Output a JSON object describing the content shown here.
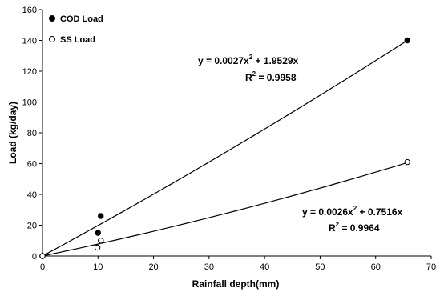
{
  "chart_data": {
    "type": "scatter",
    "xlabel": "Rainfall depth(mm)",
    "ylabel": "Load (kg/day)",
    "xlim": [
      0,
      70
    ],
    "ylim": [
      0,
      160
    ],
    "x_ticks": [
      "0",
      "10",
      "20",
      "30",
      "40",
      "50",
      "60",
      "70"
    ],
    "y_ticks": [
      "0",
      "20",
      "40",
      "60",
      "80",
      "100",
      "120",
      "140",
      "160"
    ],
    "grid": false,
    "legend_position": "top-left",
    "series": [
      {
        "name": "COD Load",
        "marker": "filled-circle",
        "color": "#000000",
        "points": [
          [
            0,
            0
          ],
          [
            10,
            15
          ],
          [
            10.5,
            26
          ],
          [
            65.7,
            140
          ]
        ],
        "trendline": {
          "equation_prefix": "y = 0.0027x",
          "equation_exp": "2",
          "equation_suffix": " + 1.9529x",
          "r2_prefix": "R",
          "r2_exp": "2",
          "r2_suffix": " = 0.9958",
          "a": 0.0027,
          "b": 1.9529
        }
      },
      {
        "name": "SS Load",
        "marker": "open-circle",
        "color": "#000000",
        "points": [
          [
            0,
            0
          ],
          [
            9.9,
            5.5
          ],
          [
            10.5,
            10
          ],
          [
            65.7,
            61
          ]
        ],
        "trendline": {
          "equation_prefix": "y = 0.0026x",
          "equation_exp": "2",
          "equation_suffix": " + 0.7516x",
          "r2_prefix": "R",
          "r2_exp": "2",
          "r2_suffix": " = 0.9964",
          "a": 0.0026,
          "b": 0.7516
        }
      }
    ]
  }
}
